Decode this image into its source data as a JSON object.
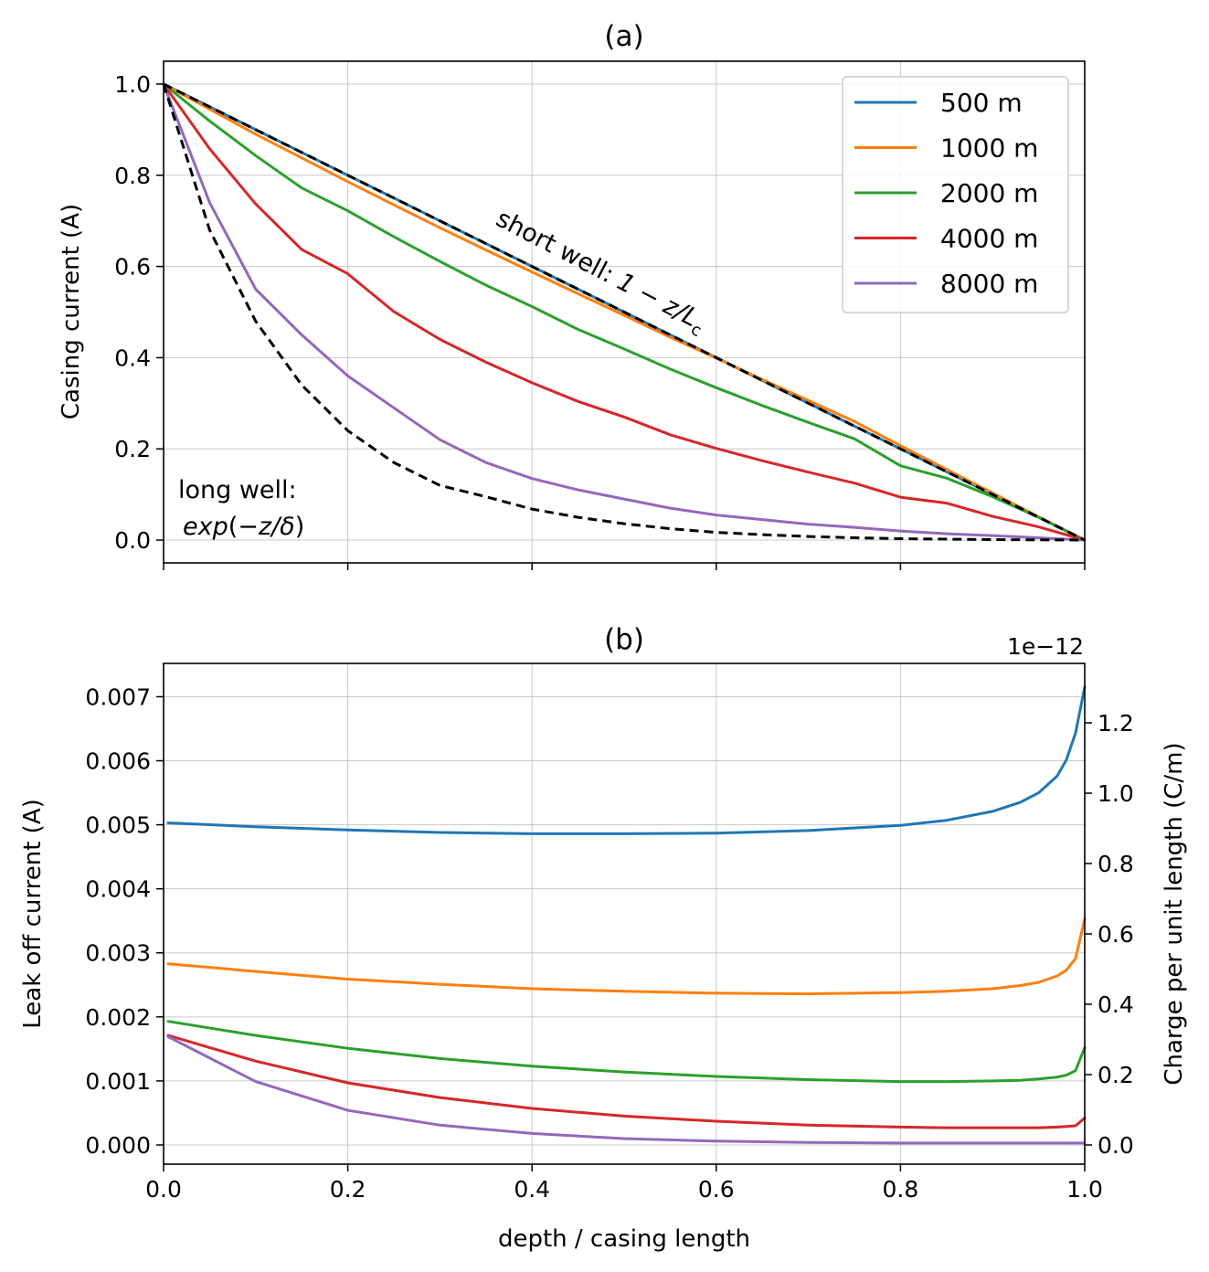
{
  "chart_data": [
    {
      "type": "line",
      "title": "(a)",
      "xlabel": "",
      "ylabel": "Casing current (A)",
      "xlim": [
        0,
        1
      ],
      "ylim": [
        -0.05,
        1.05
      ],
      "xticks": [
        0,
        0.2,
        0.4,
        0.6,
        0.8,
        1.0
      ],
      "xtick_labels_visible": false,
      "yticks": [
        "0.0",
        "0.2",
        "0.4",
        "0.6",
        "0.8",
        "1.0"
      ],
      "grid": true,
      "legend": "top-right",
      "x": [
        0,
        0.05,
        0.1,
        0.15,
        0.2,
        0.25,
        0.3,
        0.35,
        0.4,
        0.45,
        0.5,
        0.55,
        0.6,
        0.65,
        0.7,
        0.75,
        0.8,
        0.85,
        0.9,
        0.95,
        1.0
      ],
      "series": [
        {
          "name": "500 m",
          "color": "#1f77b4",
          "style": "solid",
          "values": [
            1.0,
            0.95,
            0.9,
            0.85,
            0.8,
            0.75,
            0.7,
            0.65,
            0.6,
            0.55,
            0.5,
            0.45,
            0.4,
            0.35,
            0.3,
            0.25,
            0.2,
            0.15,
            0.1,
            0.05,
            0.0
          ]
        },
        {
          "name": "1000 m",
          "color": "#ff7f0e",
          "style": "solid",
          "values": [
            1.0,
            0.945,
            0.89,
            0.838,
            0.786,
            0.735,
            0.685,
            0.636,
            0.588,
            0.54,
            0.493,
            0.445,
            0.399,
            0.352,
            0.306,
            0.26,
            0.207,
            0.155,
            0.103,
            0.051,
            0.0
          ]
        },
        {
          "name": "2000 m",
          "color": "#2ca02c",
          "style": "solid",
          "values": [
            1.0,
            0.919,
            0.843,
            0.772,
            0.722,
            0.665,
            0.611,
            0.559,
            0.512,
            0.462,
            0.419,
            0.375,
            0.334,
            0.295,
            0.258,
            0.222,
            0.163,
            0.136,
            0.095,
            0.05,
            0.0
          ]
        },
        {
          "name": "4000 m",
          "color": "#d62728",
          "style": "solid",
          "values": [
            1.0,
            0.858,
            0.737,
            0.637,
            0.584,
            0.501,
            0.44,
            0.39,
            0.345,
            0.304,
            0.27,
            0.231,
            0.201,
            0.174,
            0.149,
            0.125,
            0.094,
            0.081,
            0.052,
            0.029,
            0.0
          ]
        },
        {
          "name": "8000 m",
          "color": "#9467bd",
          "style": "solid",
          "values": [
            1.0,
            0.74,
            0.55,
            0.45,
            0.36,
            0.29,
            0.22,
            0.17,
            0.135,
            0.11,
            0.09,
            0.07,
            0.055,
            0.045,
            0.035,
            0.028,
            0.02,
            0.014,
            0.01,
            0.005,
            0.0
          ]
        },
        {
          "name": "",
          "color": "#000000",
          "style": "dashed",
          "values": [
            1.0,
            0.68,
            0.48,
            0.34,
            0.24,
            0.17,
            0.12,
            0.095,
            0.068,
            0.05,
            0.036,
            0.025,
            0.017,
            0.012,
            0.008,
            0.005,
            0.003,
            0.002,
            0.001,
            0.0005,
            0.0
          ]
        },
        {
          "name": "",
          "color": "#000000",
          "style": "dashed",
          "values": [
            1.0,
            0.95,
            0.9,
            0.85,
            0.8,
            0.75,
            0.7,
            0.65,
            0.6,
            0.55,
            0.5,
            0.45,
            0.4,
            0.35,
            0.3,
            0.25,
            0.2,
            0.15,
            0.1,
            0.05,
            0.0
          ]
        }
      ],
      "annotations": {
        "short_well_prefix": "short well: ",
        "short_well_formula": "1 − z/L",
        "short_well_sub": "c",
        "long_well_line1": "long well:",
        "long_well_line2_prefix": "exp",
        "long_well_line2_mid": "(−",
        "long_well_line2_z": "z/δ",
        "long_well_line2_suffix": ")"
      }
    },
    {
      "type": "line",
      "title": "(b)",
      "xlabel": "depth / casing length",
      "ylabel": "Leak off current (A)",
      "y2label": "Charge per unit length (C/m)",
      "y2_offset_text": "1e−12",
      "xlim": [
        0,
        1
      ],
      "ylim": [
        -0.0003,
        0.00752
      ],
      "y2lim": [
        -0.0546,
        1.3689
      ],
      "xticks": [
        "0.0",
        "0.2",
        "0.4",
        "0.6",
        "0.8",
        "1.0"
      ],
      "yticks": [
        "0.000",
        "0.001",
        "0.002",
        "0.003",
        "0.004",
        "0.005",
        "0.006",
        "0.007"
      ],
      "y2ticks": [
        "0.0",
        "0.2",
        "0.4",
        "0.6",
        "0.8",
        "1.0",
        "1.2"
      ],
      "grid": true,
      "x": [
        0.005,
        0.1,
        0.2,
        0.3,
        0.4,
        0.5,
        0.6,
        0.7,
        0.8,
        0.85,
        0.9,
        0.93,
        0.95,
        0.97,
        0.98,
        0.99,
        1.0
      ],
      "series": [
        {
          "name": "500 m",
          "color": "#1f77b4",
          "values": [
            0.00503,
            0.00497,
            0.00492,
            0.00488,
            0.00486,
            0.00486,
            0.00487,
            0.00491,
            0.00499,
            0.00507,
            0.00521,
            0.00535,
            0.0055,
            0.00576,
            0.00601,
            0.00643,
            0.00715
          ]
        },
        {
          "name": "1000 m",
          "color": "#ff7f0e",
          "values": [
            0.00283,
            0.00271,
            0.00259,
            0.00251,
            0.00244,
            0.0024,
            0.00237,
            0.00236,
            0.00238,
            0.0024,
            0.00244,
            0.00249,
            0.00254,
            0.00264,
            0.00273,
            0.00291,
            0.00353
          ]
        },
        {
          "name": "2000 m",
          "color": "#2ca02c",
          "values": [
            0.00193,
            0.00171,
            0.00151,
            0.00135,
            0.00123,
            0.00114,
            0.00107,
            0.00102,
            0.00099,
            0.00099,
            0.001,
            0.00101,
            0.00103,
            0.00106,
            0.00109,
            0.00116,
            0.00152
          ]
        },
        {
          "name": "4000 m",
          "color": "#d62728",
          "values": [
            0.00171,
            0.00131,
            0.00097,
            0.00074,
            0.00057,
            0.00045,
            0.00037,
            0.00031,
            0.00028,
            0.00027,
            0.00027,
            0.00027,
            0.00027,
            0.00028,
            0.00029,
            0.0003,
            0.00042
          ]
        },
        {
          "name": "8000 m",
          "color": "#9467bd",
          "values": [
            0.00169,
            0.00099,
            0.00054,
            0.00031,
            0.00018,
            0.0001,
            6e-05,
            4e-05,
            3e-05,
            3e-05,
            3e-05,
            3e-05,
            3e-05,
            3e-05,
            3e-05,
            3e-05,
            3e-05
          ]
        }
      ]
    }
  ]
}
